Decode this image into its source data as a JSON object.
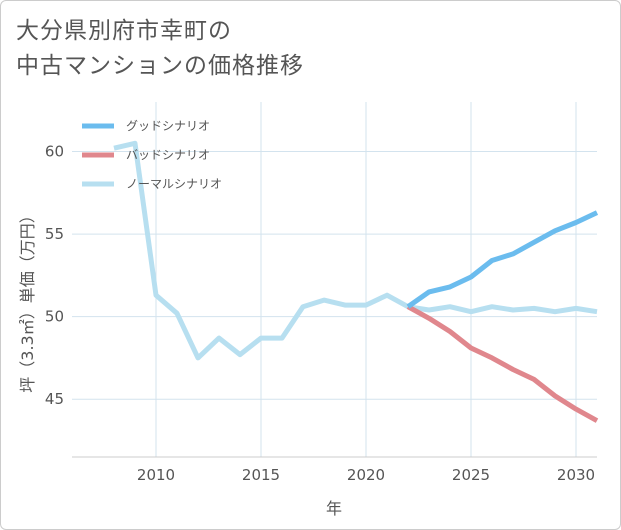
{
  "chart_data": {
    "type": "line",
    "title_lines": [
      "大分県別府市幸町の",
      "中古マンションの価格推移"
    ],
    "xlabel": "年",
    "ylabel": "坪（3.3㎡）単価（万円）",
    "xlim": [
      2006,
      2031
    ],
    "ylim": [
      41.5,
      63
    ],
    "xticks": [
      2010,
      2015,
      2020,
      2025,
      2030
    ],
    "yticks": [
      45,
      50,
      55,
      60
    ],
    "series": [
      {
        "name": "グッドシナリオ",
        "color": "#6bbcee",
        "x": [
          2022,
          2023,
          2024,
          2025,
          2026,
          2027,
          2028,
          2029,
          2030,
          2031
        ],
        "values": [
          50.6,
          51.5,
          51.8,
          52.4,
          53.4,
          53.8,
          54.5,
          55.2,
          55.7,
          56.3
        ]
      },
      {
        "name": "バッドシナリオ",
        "color": "#e0878d",
        "x": [
          2022,
          2023,
          2024,
          2025,
          2026,
          2027,
          2028,
          2029,
          2030,
          2031
        ],
        "values": [
          50.6,
          49.9,
          49.1,
          48.1,
          47.5,
          46.8,
          46.2,
          45.2,
          44.4,
          43.7
        ]
      },
      {
        "name": "ノーマルシナリオ",
        "color": "#b7dff0",
        "x": [
          2008,
          2009,
          2010,
          2011,
          2012,
          2013,
          2014,
          2015,
          2016,
          2017,
          2018,
          2019,
          2020,
          2021,
          2022,
          2023,
          2024,
          2025,
          2026,
          2027,
          2028,
          2029,
          2030,
          2031
        ],
        "values": [
          60.2,
          60.5,
          51.3,
          50.2,
          47.5,
          48.7,
          47.7,
          48.7,
          48.7,
          50.6,
          51.0,
          50.7,
          50.7,
          51.3,
          50.6,
          50.4,
          50.6,
          50.3,
          50.6,
          50.4,
          50.5,
          50.3,
          50.5,
          50.3
        ]
      }
    ],
    "legend_position": "top-left"
  }
}
